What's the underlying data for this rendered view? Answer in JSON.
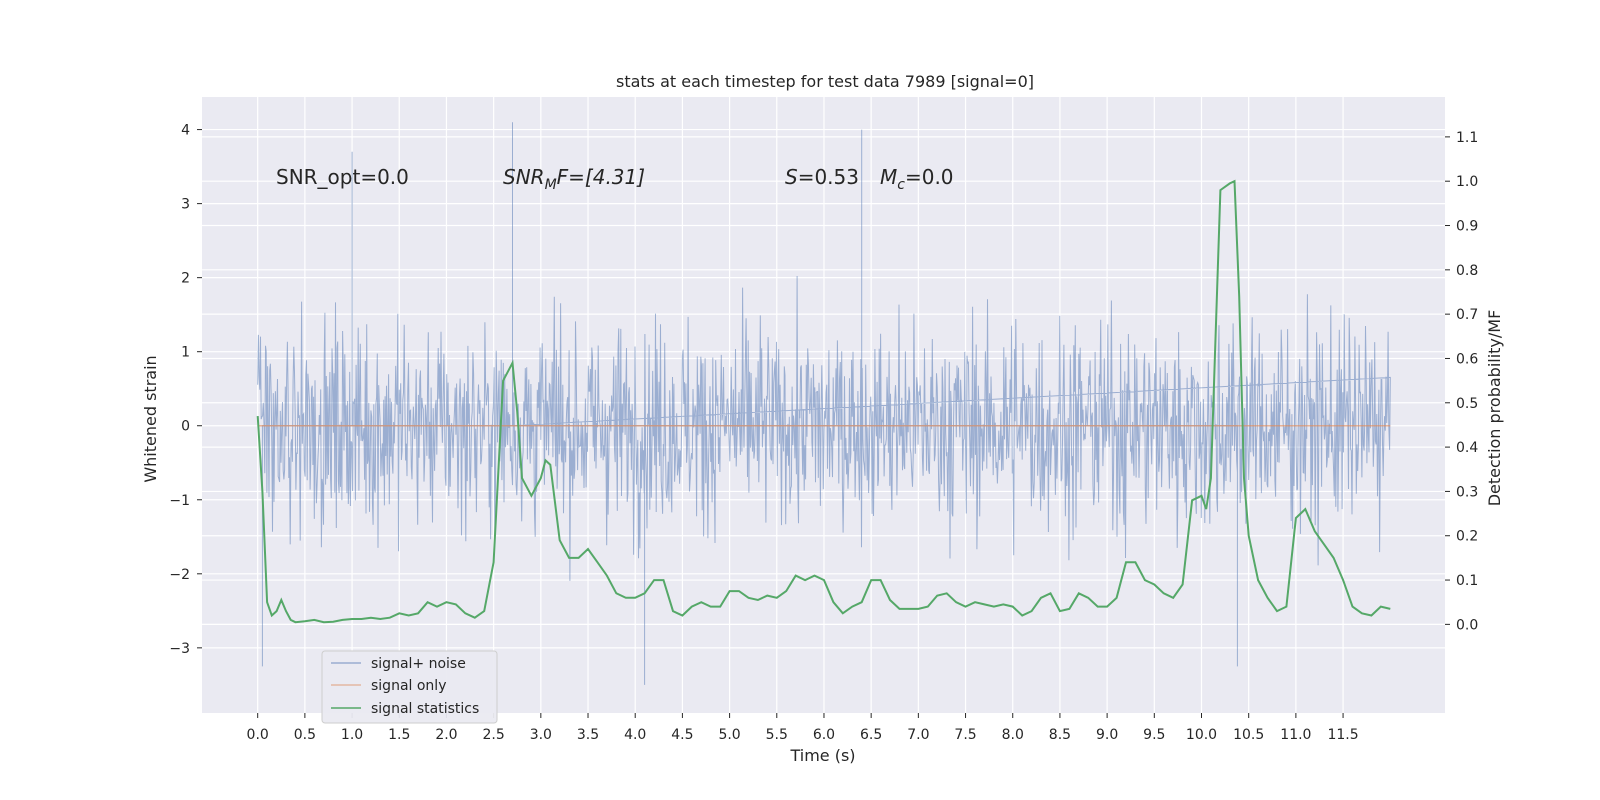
{
  "chart_data": {
    "type": "line",
    "title": "stats at each timestep for test data 7989 [signal=0]",
    "xlabel": "Time (s)",
    "ylabel_left": "Whitened strain",
    "ylabel_right": "Detection probability/MF",
    "xlim": [
      -0.59,
      12.58
    ],
    "ylim_left": [
      -3.88,
      4.44
    ],
    "ylim_right": [
      -0.2,
      1.19
    ],
    "x_ticks": [
      "0.0",
      "0.5",
      "1.0",
      "1.5",
      "2.0",
      "2.5",
      "3.0",
      "3.5",
      "4.0",
      "4.5",
      "5.0",
      "5.5",
      "6.0",
      "6.5",
      "7.0",
      "7.5",
      "8.0",
      "8.5",
      "9.0",
      "9.5",
      "10.0",
      "10.5",
      "11.0",
      "11.5"
    ],
    "y_left_ticks": [
      4,
      3,
      2,
      1,
      0,
      -1,
      -2,
      -3
    ],
    "y_left_tick_labels": [
      "4",
      "3",
      "2",
      "1",
      "0",
      "−1",
      "−2",
      "−3"
    ],
    "y_right_ticks": [
      "1.1",
      "1.0",
      "0.9",
      "0.8",
      "0.7",
      "0.6",
      "0.5",
      "0.4",
      "0.3",
      "0.2",
      "0.1",
      "0.0"
    ],
    "grid": true,
    "legend_position": "lower-left",
    "annotations": {
      "snr_opt": "SNR_opt=0.0",
      "snr_mf_main": "SNR",
      "snr_mf_sub": "M",
      "snr_mf_rest": "F=[4.31]",
      "s_label": "S",
      "s_value": "=0.53",
      "mc_main": "M",
      "mc_sub": "c",
      "mc_value": "=0.0"
    },
    "series": [
      {
        "name": "signal+ noise",
        "color": "#4c72b0",
        "axis": "left",
        "duration": 12.0,
        "amplitude_envelope": [
          -3.5,
          4.1
        ],
        "notable_peaks": [
          {
            "x": 2.7,
            "y": 4.1
          },
          {
            "x": 6.4,
            "y": 4.0
          },
          {
            "x": 1.0,
            "y": 3.7
          },
          {
            "x": 10.38,
            "y": -3.25
          },
          {
            "x": 0.05,
            "y": -3.25
          },
          {
            "x": 4.1,
            "y": -3.5
          }
        ]
      },
      {
        "name": "signal only",
        "color": "#dd8452",
        "axis": "left",
        "x": [
          0.0,
          12.0
        ],
        "y": [
          0.0,
          0.0
        ]
      },
      {
        "name": "signal statistics",
        "color": "#55a868",
        "axis": "right",
        "x": [
          0.0,
          0.05,
          0.1,
          0.15,
          0.2,
          0.25,
          0.3,
          0.35,
          0.4,
          0.5,
          0.6,
          0.7,
          0.8,
          0.9,
          1.0,
          1.1,
          1.2,
          1.3,
          1.4,
          1.5,
          1.6,
          1.7,
          1.8,
          1.9,
          2.0,
          2.1,
          2.2,
          2.3,
          2.4,
          2.5,
          2.6,
          2.65,
          2.7,
          2.75,
          2.8,
          2.9,
          3.0,
          3.05,
          3.1,
          3.2,
          3.3,
          3.4,
          3.5,
          3.6,
          3.7,
          3.8,
          3.9,
          4.0,
          4.1,
          4.2,
          4.3,
          4.4,
          4.5,
          4.6,
          4.7,
          4.8,
          4.9,
          5.0,
          5.1,
          5.2,
          5.3,
          5.4,
          5.5,
          5.6,
          5.7,
          5.8,
          5.9,
          6.0,
          6.1,
          6.2,
          6.3,
          6.4,
          6.5,
          6.6,
          6.7,
          6.8,
          6.9,
          7.0,
          7.1,
          7.2,
          7.3,
          7.4,
          7.5,
          7.6,
          7.7,
          7.8,
          7.9,
          8.0,
          8.1,
          8.2,
          8.3,
          8.4,
          8.5,
          8.6,
          8.7,
          8.8,
          8.9,
          9.0,
          9.1,
          9.2,
          9.3,
          9.4,
          9.5,
          9.6,
          9.7,
          9.8,
          9.9,
          10.0,
          10.05,
          10.1,
          10.2,
          10.3,
          10.35,
          10.4,
          10.45,
          10.5,
          10.6,
          10.7,
          10.8,
          10.9,
          11.0,
          11.1,
          11.2,
          11.3,
          11.4,
          11.5,
          11.6,
          11.7,
          11.8,
          11.9,
          12.0
        ],
        "y": [
          0.47,
          0.3,
          0.05,
          0.02,
          0.03,
          0.055,
          0.03,
          0.01,
          0.005,
          0.007,
          0.01,
          0.005,
          0.006,
          0.01,
          0.012,
          0.012,
          0.015,
          0.012,
          0.015,
          0.025,
          0.02,
          0.025,
          0.05,
          0.04,
          0.05,
          0.045,
          0.025,
          0.015,
          0.03,
          0.14,
          0.55,
          0.57,
          0.59,
          0.48,
          0.33,
          0.29,
          0.33,
          0.37,
          0.36,
          0.19,
          0.15,
          0.15,
          0.17,
          0.14,
          0.11,
          0.07,
          0.06,
          0.06,
          0.07,
          0.1,
          0.1,
          0.03,
          0.02,
          0.04,
          0.05,
          0.04,
          0.04,
          0.075,
          0.075,
          0.06,
          0.055,
          0.065,
          0.06,
          0.075,
          0.11,
          0.1,
          0.11,
          0.1,
          0.05,
          0.025,
          0.04,
          0.05,
          0.1,
          0.1,
          0.055,
          0.035,
          0.035,
          0.035,
          0.04,
          0.065,
          0.07,
          0.05,
          0.04,
          0.05,
          0.045,
          0.04,
          0.045,
          0.04,
          0.02,
          0.03,
          0.06,
          0.07,
          0.03,
          0.035,
          0.07,
          0.06,
          0.04,
          0.04,
          0.06,
          0.14,
          0.14,
          0.1,
          0.09,
          0.07,
          0.06,
          0.09,
          0.28,
          0.29,
          0.26,
          0.33,
          0.98,
          0.995,
          1.0,
          0.74,
          0.33,
          0.2,
          0.1,
          0.06,
          0.03,
          0.04,
          0.24,
          0.26,
          0.21,
          0.18,
          0.15,
          0.1,
          0.04,
          0.025,
          0.02,
          0.04,
          0.035
        ]
      }
    ]
  }
}
